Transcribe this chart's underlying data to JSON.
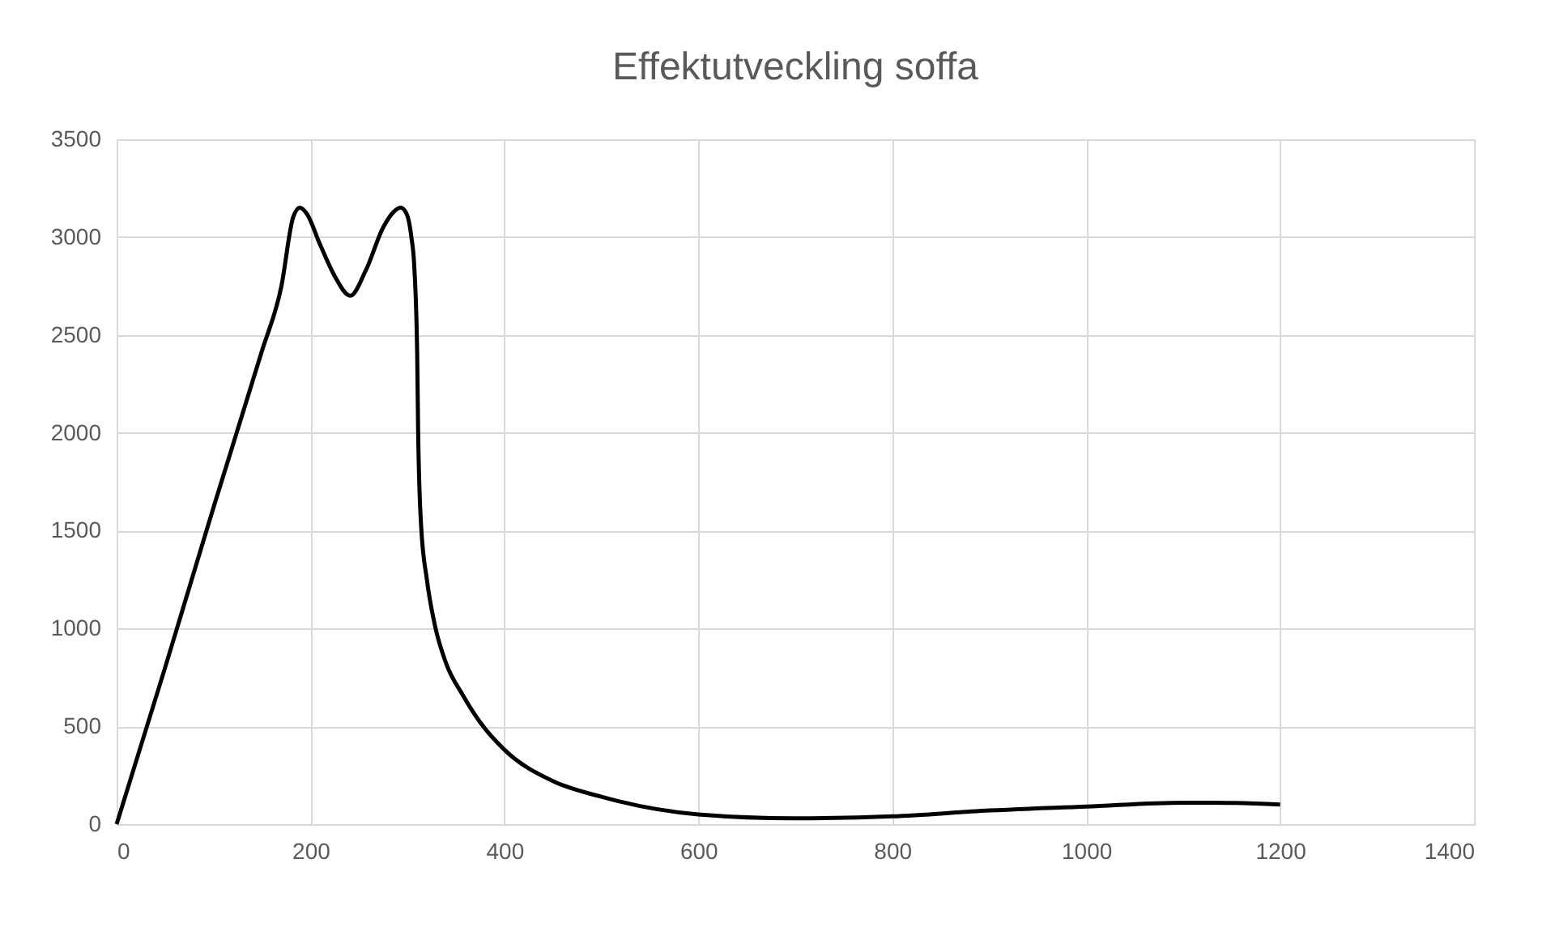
{
  "chart_data": {
    "type": "line",
    "title": "Effektutveckling soffa",
    "x": [
      0,
      50,
      100,
      150,
      170,
      182,
      189,
      196,
      210,
      225,
      241,
      257,
      275,
      286,
      293,
      299,
      304,
      307,
      310,
      311,
      314,
      320,
      329,
      340,
      357,
      375,
      400,
      450,
      500,
      600,
      700,
      800,
      900,
      1000,
      1100,
      1130,
      1200
    ],
    "series": [
      {
        "color": "#000000",
        "values": [
          0,
          800,
          1620,
          2420,
          2750,
          3100,
          3150,
          3120,
          2960,
          2800,
          2700,
          2830,
          3050,
          3130,
          3150,
          3120,
          3000,
          2850,
          2400,
          2000,
          1530,
          1250,
          1000,
          820,
          660,
          520,
          380,
          220,
          140,
          50,
          30,
          40,
          70,
          90,
          110,
          110,
          100
        ]
      }
    ],
    "xlim": [
      0,
      1400
    ],
    "xticks": [
      0,
      200,
      400,
      600,
      800,
      1000,
      1200,
      1400
    ],
    "ylim": [
      0,
      3500
    ],
    "yticks": [
      0,
      500,
      1000,
      1500,
      2000,
      2500,
      3000,
      3500
    ],
    "grid": true,
    "marker": "none",
    "line_style": "solid"
  }
}
